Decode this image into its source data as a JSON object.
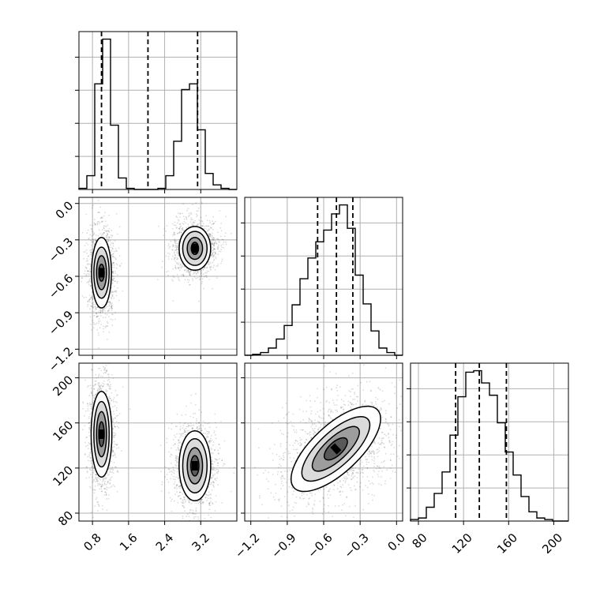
{
  "chart_data": {
    "type": "corner",
    "title": "",
    "grid": true,
    "parameters": [
      {
        "range": [
          0.5,
          4.0
        ],
        "ticks": [
          "0.8",
          "1.6",
          "2.4",
          "3.2"
        ],
        "tick_values": [
          0.8,
          1.6,
          2.4,
          3.2
        ]
      },
      {
        "range": [
          -1.25,
          0.05
        ],
        "ticks": [
          "−1.2",
          "−0.9",
          "−0.6",
          "−0.3",
          "0.0"
        ],
        "tick_values": [
          -1.2,
          -0.9,
          -0.6,
          -0.3,
          0.0
        ]
      },
      {
        "range": [
          73,
          213
        ],
        "ticks": [
          "80",
          "120",
          "160",
          "200"
        ],
        "tick_values": [
          80,
          120,
          160,
          200
        ]
      }
    ],
    "histograms": [
      {
        "param": 0,
        "bin_edges": [
          0.5,
          0.675,
          0.85,
          1.025,
          1.2,
          1.375,
          1.55,
          1.725,
          1.9,
          2.075,
          2.25,
          2.425,
          2.6,
          2.775,
          2.95,
          3.125,
          3.3,
          3.475,
          3.65,
          3.825,
          4.0
        ],
        "counts": [
          1,
          12,
          92,
          131,
          56,
          10,
          1,
          0,
          0,
          0,
          1,
          12,
          42,
          87,
          92,
          52,
          14,
          4,
          1,
          0
        ],
        "quantile_lines": [
          1.0,
          2.03,
          3.13
        ]
      },
      {
        "param": 1,
        "bin_edges": [
          -1.25,
          -1.185,
          -1.12,
          -1.055,
          -0.99,
          -0.925,
          -0.86,
          -0.795,
          -0.73,
          -0.665,
          -0.6,
          -0.535,
          -0.47,
          -0.405,
          -0.34,
          -0.275,
          -0.21,
          -0.145,
          -0.08,
          -0.015,
          0.05
        ],
        "counts": [
          0,
          1,
          3,
          8,
          18,
          33,
          56,
          85,
          108,
          126,
          139,
          157,
          167,
          141,
          89,
          57,
          27,
          8,
          3,
          0
        ],
        "quantile_lines": [
          -0.65,
          -0.495,
          -0.36
        ]
      },
      {
        "param": 2,
        "bin_edges": [
          73,
          80,
          87,
          94,
          101,
          108,
          115,
          122,
          129,
          136,
          143,
          150,
          157,
          164,
          171,
          178,
          185,
          192,
          199,
          206,
          213
        ],
        "counts": [
          1,
          2,
          9,
          18,
          32,
          56,
          81,
          97,
          98,
          90,
          82,
          64,
          45,
          30,
          16,
          6,
          2,
          1,
          0,
          0
        ],
        "quantile_lines": [
          113,
          134,
          158
        ]
      }
    ],
    "scatter_panels": [
      {
        "x_param": 0,
        "y_param": 1,
        "clusters": [
          {
            "center": [
              1.0,
              -0.57
            ],
            "spread": [
              0.11,
              0.14
            ],
            "levels": [
              [
                0.22,
                0.29
              ],
              [
                0.17,
                0.21
              ],
              [
                0.11,
                0.14
              ],
              [
                0.06,
                0.07
              ]
            ]
          },
          {
            "center": [
              3.07,
              -0.37
            ],
            "spread": [
              0.18,
              0.09
            ],
            "levels": [
              [
                0.35,
                0.18
              ],
              [
                0.27,
                0.14
              ],
              [
                0.17,
                0.09
              ],
              [
                0.08,
                0.05
              ]
            ]
          }
        ]
      },
      {
        "x_param": 0,
        "y_param": 2,
        "clusters": [
          {
            "center": [
              1.0,
              150
            ],
            "spread": [
              0.11,
              18
            ],
            "levels": [
              [
                0.23,
                38
              ],
              [
                0.17,
                29
              ],
              [
                0.11,
                20
              ],
              [
                0.06,
                11
              ]
            ]
          },
          {
            "center": [
              3.07,
              122
            ],
            "spread": [
              0.18,
              14
            ],
            "levels": [
              [
                0.35,
                31
              ],
              [
                0.27,
                24
              ],
              [
                0.17,
                16
              ],
              [
                0.09,
                9
              ]
            ]
          }
        ]
      },
      {
        "x_param": 1,
        "y_param": 2,
        "clusters": [
          {
            "center": [
              -0.5,
              137
            ],
            "spread": [
              0.2,
              16
            ],
            "rotation": -0.75,
            "levels": [
              [
                0.47,
                21
              ],
              [
                0.36,
                15
              ],
              [
                0.25,
                10
              ],
              [
                0.12,
                6
              ]
            ]
          }
        ]
      }
    ]
  }
}
